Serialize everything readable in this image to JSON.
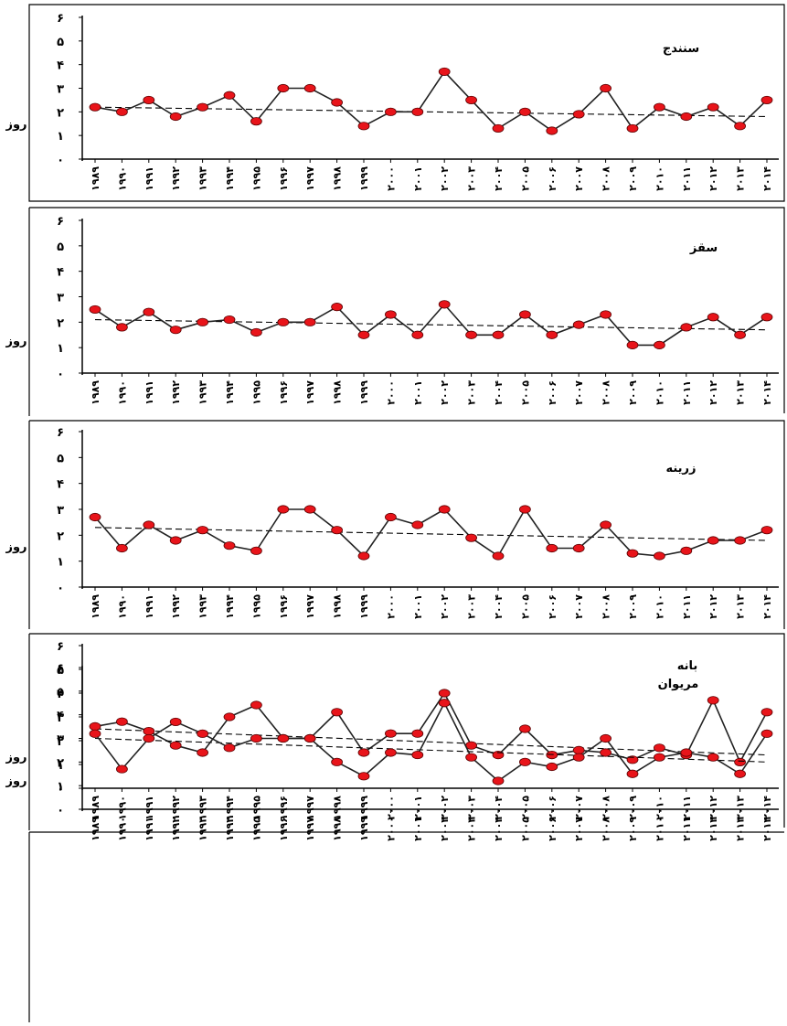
{
  "colors": {
    "point_fill": "#e8141a",
    "point_stroke": "#5a0000",
    "line": "#222222",
    "trend": "#000000"
  },
  "chart_data": [
    {
      "type": "line",
      "title": "سنندج",
      "ylabel": "روز",
      "ylim": [
        0,
        6
      ],
      "y_ticks": [
        "۰",
        "۱",
        "۲",
        "۳",
        "۴",
        "۵",
        "۶"
      ],
      "categories": [
        "۱۹۸۹",
        "۱۹۹۰",
        "۱۹۹۱",
        "۱۹۹۲",
        "۱۹۹۳",
        "۱۹۹۴",
        "۱۹۹۵",
        "۱۹۹۶",
        "۱۹۹۷",
        "۱۹۹۸",
        "۱۹۹۹",
        "۲۰۰۰",
        "۲۰۰۱",
        "۲۰۰۲",
        "۲۰۰۳",
        "۲۰۰۴",
        "۲۰۰۵",
        "۲۰۰۶",
        "۲۰۰۷",
        "۲۰۰۸",
        "۲۰۰۹",
        "۲۰۱۰",
        "۲۰۱۱",
        "۲۰۱۲",
        "۲۰۱۳",
        "۲۰۱۴"
      ],
      "values": [
        2.2,
        2.0,
        2.5,
        1.8,
        2.2,
        2.7,
        1.6,
        3.0,
        3.0,
        2.4,
        1.4,
        2.0,
        2.0,
        3.7,
        2.5,
        1.3,
        2.0,
        1.2,
        1.9,
        3.0,
        1.3,
        2.2,
        1.8,
        2.2,
        1.4,
        2.5
      ],
      "trend": [
        2.2,
        1.8
      ]
    },
    {
      "type": "line",
      "title": "سقز",
      "ylabel": "روز",
      "ylim": [
        0,
        6
      ],
      "y_ticks": [
        "۰",
        "۱",
        "۲",
        "۳",
        "۴",
        "۵",
        "۶"
      ],
      "categories": [
        "۱۹۸۹",
        "۱۹۹۰",
        "۱۹۹۱",
        "۱۹۹۲",
        "۱۹۹۳",
        "۱۹۹۴",
        "۱۹۹۵",
        "۱۹۹۶",
        "۱۹۹۷",
        "۱۹۹۸",
        "۱۹۹۹",
        "۲۰۰۰",
        "۲۰۰۱",
        "۲۰۰۲",
        "۲۰۰۳",
        "۲۰۰۴",
        "۲۰۰۵",
        "۲۰۰۶",
        "۲۰۰۷",
        "۲۰۰۸",
        "۲۰۰۹",
        "۲۰۱۰",
        "۲۰۱۱",
        "۲۰۱۲",
        "۲۰۱۳",
        "۲۰۱۴"
      ],
      "values": [
        2.5,
        1.8,
        2.4,
        1.7,
        2.0,
        2.1,
        1.6,
        2.0,
        2.0,
        2.6,
        1.5,
        2.3,
        1.5,
        2.7,
        1.5,
        1.5,
        2.3,
        1.5,
        1.9,
        2.3,
        1.1,
        1.1,
        1.8,
        2.2,
        1.5,
        2.2
      ],
      "trend": [
        2.1,
        1.7
      ]
    },
    {
      "type": "line",
      "title": "زرینه",
      "ylabel": "روز",
      "ylim": [
        0,
        6
      ],
      "y_ticks": [
        "۰",
        "۱",
        "۲",
        "۳",
        "۴",
        "۵",
        "۶"
      ],
      "categories": [
        "۱۹۸۹",
        "۱۹۹۰",
        "۱۹۹۱",
        "۱۹۹۲",
        "۱۹۹۳",
        "۱۹۹۴",
        "۱۹۹۵",
        "۱۹۹۶",
        "۱۹۹۷",
        "۱۹۹۸",
        "۱۹۹۹",
        "۲۰۰۰",
        "۲۰۰۱",
        "۲۰۰۲",
        "۲۰۰۳",
        "۲۰۰۴",
        "۲۰۰۵",
        "۲۰۰۶",
        "۲۰۰۷",
        "۲۰۰۸",
        "۲۰۰۹",
        "۲۰۱۰",
        "۲۰۱۱",
        "۲۰۱۲",
        "۲۰۱۳",
        "۲۰۱۴"
      ],
      "values": [
        2.7,
        1.5,
        2.4,
        1.8,
        2.2,
        1.6,
        1.4,
        3.0,
        3.0,
        2.2,
        1.2,
        2.7,
        2.4,
        3.0,
        1.9,
        1.2,
        3.0,
        1.5,
        1.5,
        2.4,
        1.3,
        1.2,
        1.4,
        1.8,
        1.8,
        2.2
      ],
      "trend": [
        2.3,
        1.8
      ]
    },
    {
      "type": "line",
      "title": "بانه",
      "ylabel": "روز",
      "ylim": [
        0,
        6
      ],
      "y_ticks": [
        "۰",
        "۱",
        "۲",
        "۳",
        "۴",
        "۵",
        "۶"
      ],
      "categories": [
        "۱۹۸۹",
        "۱۹۹۰",
        "۱۹۹۱",
        "۱۹۹۲",
        "۱۹۹۳",
        "۱۹۹۴",
        "۱۹۹۵",
        "۱۹۹۶",
        "۱۹۹۷",
        "۱۹۹۸",
        "۱۹۹۹",
        "۲۰۰۰",
        "۲۰۰۱",
        "۲۰۰۲",
        "۲۰۰۳",
        "۲۰۰۴",
        "۲۰۰۵",
        "۲۰۰۶",
        "۲۰۰۷",
        "۲۰۰۸",
        "۲۰۰۹",
        "۲۰۱۰",
        "۲۰۱۱",
        "۲۰۱۲",
        "۲۰۱۳",
        "۲۰۱۴"
      ],
      "values": [
        2.6,
        2.8,
        2.4,
        1.8,
        1.5,
        3.0,
        3.5,
        2.1,
        2.1,
        3.2,
        1.5,
        2.3,
        2.3,
        4.0,
        1.8,
        1.4,
        2.5,
        1.4,
        1.6,
        1.5,
        1.2,
        1.7,
        1.4,
        3.7,
        1.1,
        3.2
      ],
      "trend": [
        2.5,
        1.4
      ]
    },
    {
      "type": "line",
      "title": "مریوان",
      "ylabel": "روز",
      "ylim": [
        0,
        6
      ],
      "y_ticks": [
        "۰",
        "۱",
        "۲",
        "۳",
        "۴",
        "۵",
        "۶"
      ],
      "categories": [
        "۱۹۸۹",
        "۱۹۹۰",
        "۱۹۹۱",
        "۱۹۹۲",
        "۱۹۹۳",
        "۱۹۹۴",
        "۱۹۹۵",
        "۱۹۹۶",
        "۱۹۹۷",
        "۱۹۹۸",
        "۱۹۹۹",
        "۲۰۰۰",
        "۲۰۰۱",
        "۲۰۰۲",
        "۲۰۰۳",
        "۲۰۰۴",
        "۲۰۰۵",
        "۲۰۰۶",
        "۲۰۰۷",
        "۲۰۰۸",
        "۲۰۰۹",
        "۲۰۱۰",
        "۲۰۱۱",
        "۲۰۱۲",
        "۲۰۱۳",
        "۲۰۱۴"
      ],
      "values": [
        3.2,
        1.7,
        3.0,
        3.7,
        3.2,
        2.6,
        3.0,
        3.0,
        3.0,
        2.0,
        1.4,
        2.4,
        2.3,
        4.5,
        2.2,
        1.2,
        2.0,
        1.8,
        2.2,
        3.0,
        1.5,
        2.2,
        2.4,
        2.2,
        1.5,
        3.2
      ],
      "trend": [
        3.0,
        2.0
      ]
    }
  ]
}
